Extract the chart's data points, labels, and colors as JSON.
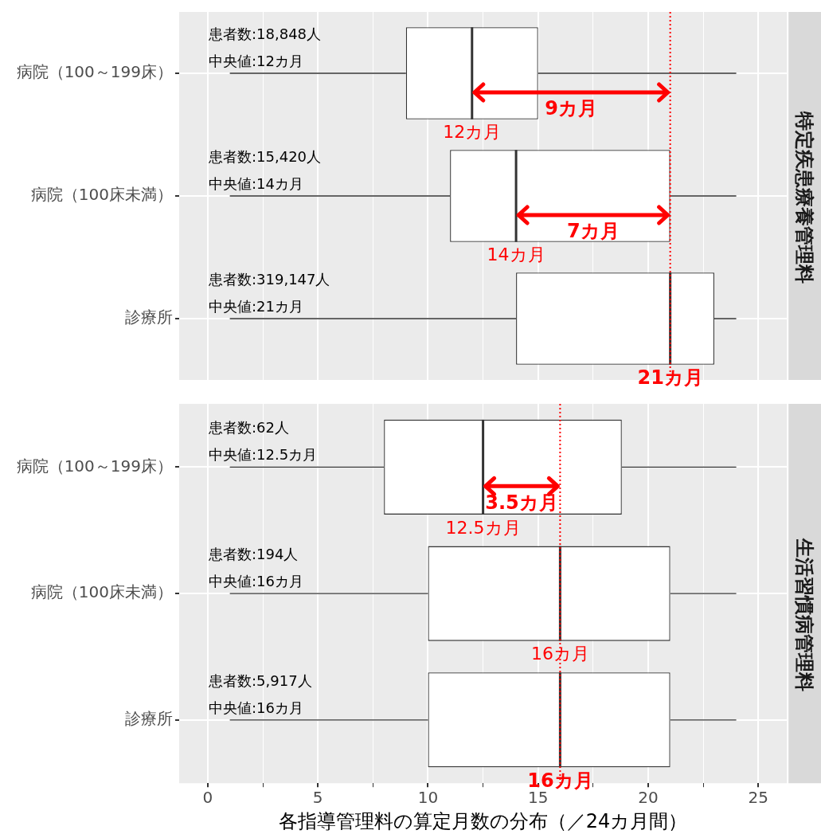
{
  "chart_data": [
    {
      "type": "box",
      "orientation": "horizontal",
      "title": "特定疾患療養管理料",
      "categories": [
        "病院（100～199床）",
        "病院（100床未満）",
        "診療所"
      ],
      "boxes": [
        {
          "low": 1,
          "q1": 9,
          "median": 12,
          "q3": 15,
          "high": 24
        },
        {
          "low": 1,
          "q1": 11,
          "median": 14,
          "q3": 21,
          "high": 24
        },
        {
          "low": 1,
          "q1": 14,
          "median": 21,
          "q3": 23,
          "high": 24
        }
      ],
      "xlim": [
        -1.3,
        26.3
      ],
      "xticks": [
        0,
        {
          "value": 2.5,
          "label": null
        },
        5,
        {
          "value": 7.5,
          "label": null
        },
        10,
        {
          "value": 12.5,
          "label": null
        },
        15,
        {
          "value": 17.5,
          "label": null
        },
        20,
        {
          "value": 22.5,
          "label": null
        },
        25
      ],
      "tick_labels": "y",
      "grid": true,
      "ref_lines": [
        {
          "axis": "x",
          "value": 21,
          "color": "#ff0000",
          "line_style": "dotted"
        }
      ],
      "annotations": [
        "患者数:18,848人",
        "中央値:12カ月",
        {
          "text": "12カ月",
          "x": 12,
          "y": "病院（100～199床）"
        },
        "9カ月",
        "患者数:15,420人",
        "中央値:14カ月",
        {
          "text": "14カ月",
          "x": 14,
          "y": "病院（100床未満）"
        },
        "7カ月",
        "患者数:319,147人",
        "中央値:21カ月",
        {
          "text": "21カ月",
          "x": 21,
          "y": "診療所"
        }
      ]
    },
    {
      "type": "box",
      "orientation": "horizontal",
      "title": "生活習慣病管理料",
      "xlabel": "各指導管理料の算定月数の分布（／24カ月間）",
      "categories": [
        "病院（100～199床）",
        "病院（100床未満）",
        "診療所"
      ],
      "boxes": [
        {
          "low": 1,
          "q1": 8,
          "median": 12.5,
          "q3": 18.8,
          "high": 24
        },
        {
          "low": 1,
          "q1": 10,
          "median": 16,
          "q3": 21,
          "high": 24
        },
        {
          "low": 1,
          "q1": 10,
          "median": 16,
          "q3": 21,
          "high": 24
        }
      ],
      "xlim": [
        -1.3,
        26.3
      ],
      "xticks": [
        0,
        {
          "value": 2.5,
          "label": null
        },
        5,
        {
          "value": 7.5,
          "label": null
        },
        10,
        {
          "value": 12.5,
          "label": null
        },
        15,
        {
          "value": 17.5,
          "label": null
        },
        20,
        {
          "value": 22.5,
          "label": null
        },
        25
      ],
      "grid": true,
      "ref_lines": [
        {
          "axis": "x",
          "value": 16,
          "color": "#ff0000",
          "line_style": "dotted"
        }
      ],
      "annotations": [
        "患者数:62人",
        "中央値:12.5カ月",
        {
          "text": "12.5カ月",
          "x": 12.5,
          "y": "病院（100～199床）"
        },
        "3.5カ月",
        "患者数:194人",
        "中央値:16カ月",
        {
          "text": "16カ月",
          "x": 16,
          "y": "病院（100床未満）"
        },
        "患者数:5,917人",
        "中央値:16カ月",
        {
          "text": "16カ月",
          "x": 16,
          "y": "診療所"
        }
      ]
    }
  ]
}
